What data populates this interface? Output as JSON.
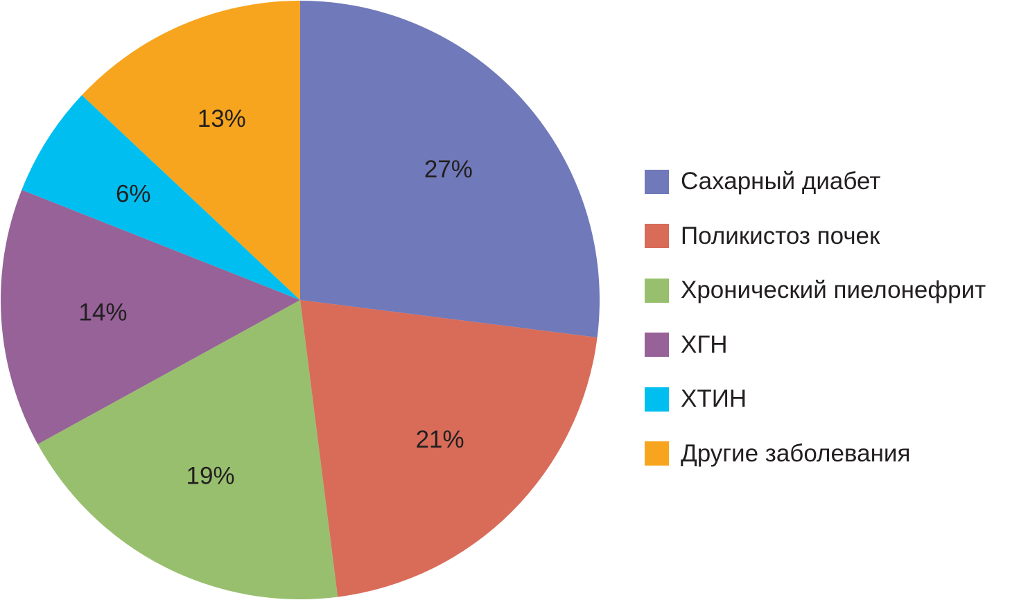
{
  "chart_data": {
    "type": "pie",
    "title": "",
    "start_angle": "12 o'clock",
    "direction": "clockwise",
    "legend_position": "right",
    "slices": [
      {
        "name": "Сахарный диабет",
        "value": 27,
        "label": "27%",
        "color": "#7079b9"
      },
      {
        "name": "Поликистоз почек",
        "value": 21,
        "label": "21%",
        "color": "#d86c59"
      },
      {
        "name": "Хронический пиелонефрит",
        "value": 19,
        "label": "19%",
        "color": "#98bf6e"
      },
      {
        "name": "ХГН",
        "value": 14,
        "label": "14%",
        "color": "#966298"
      },
      {
        "name": "ХТИН",
        "value": 6,
        "label": "6%",
        "color": "#00bff0"
      },
      {
        "name": "Другие заболевания",
        "value": 13,
        "label": "13%",
        "color": "#f7a51e"
      }
    ]
  }
}
